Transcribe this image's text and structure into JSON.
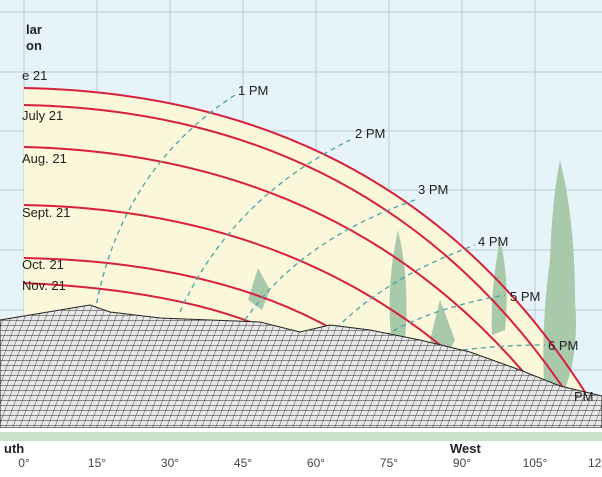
{
  "title": {
    "lines": [
      "lar",
      "on"
    ]
  },
  "dates": [
    "e 21",
    "July 21",
    "Aug. 21",
    "Sept. 21",
    "Oct. 21",
    "Nov. 21"
  ],
  "hours": [
    "1 PM",
    "2 PM",
    "3 PM",
    "4 PM",
    "5 PM",
    "6 PM",
    "PM"
  ],
  "directions": [
    "uth",
    "West"
  ],
  "azimuths": [
    "0°",
    "15°",
    "30°",
    "45°",
    "60°",
    "75°",
    "90°",
    "105°",
    "12"
  ]
}
